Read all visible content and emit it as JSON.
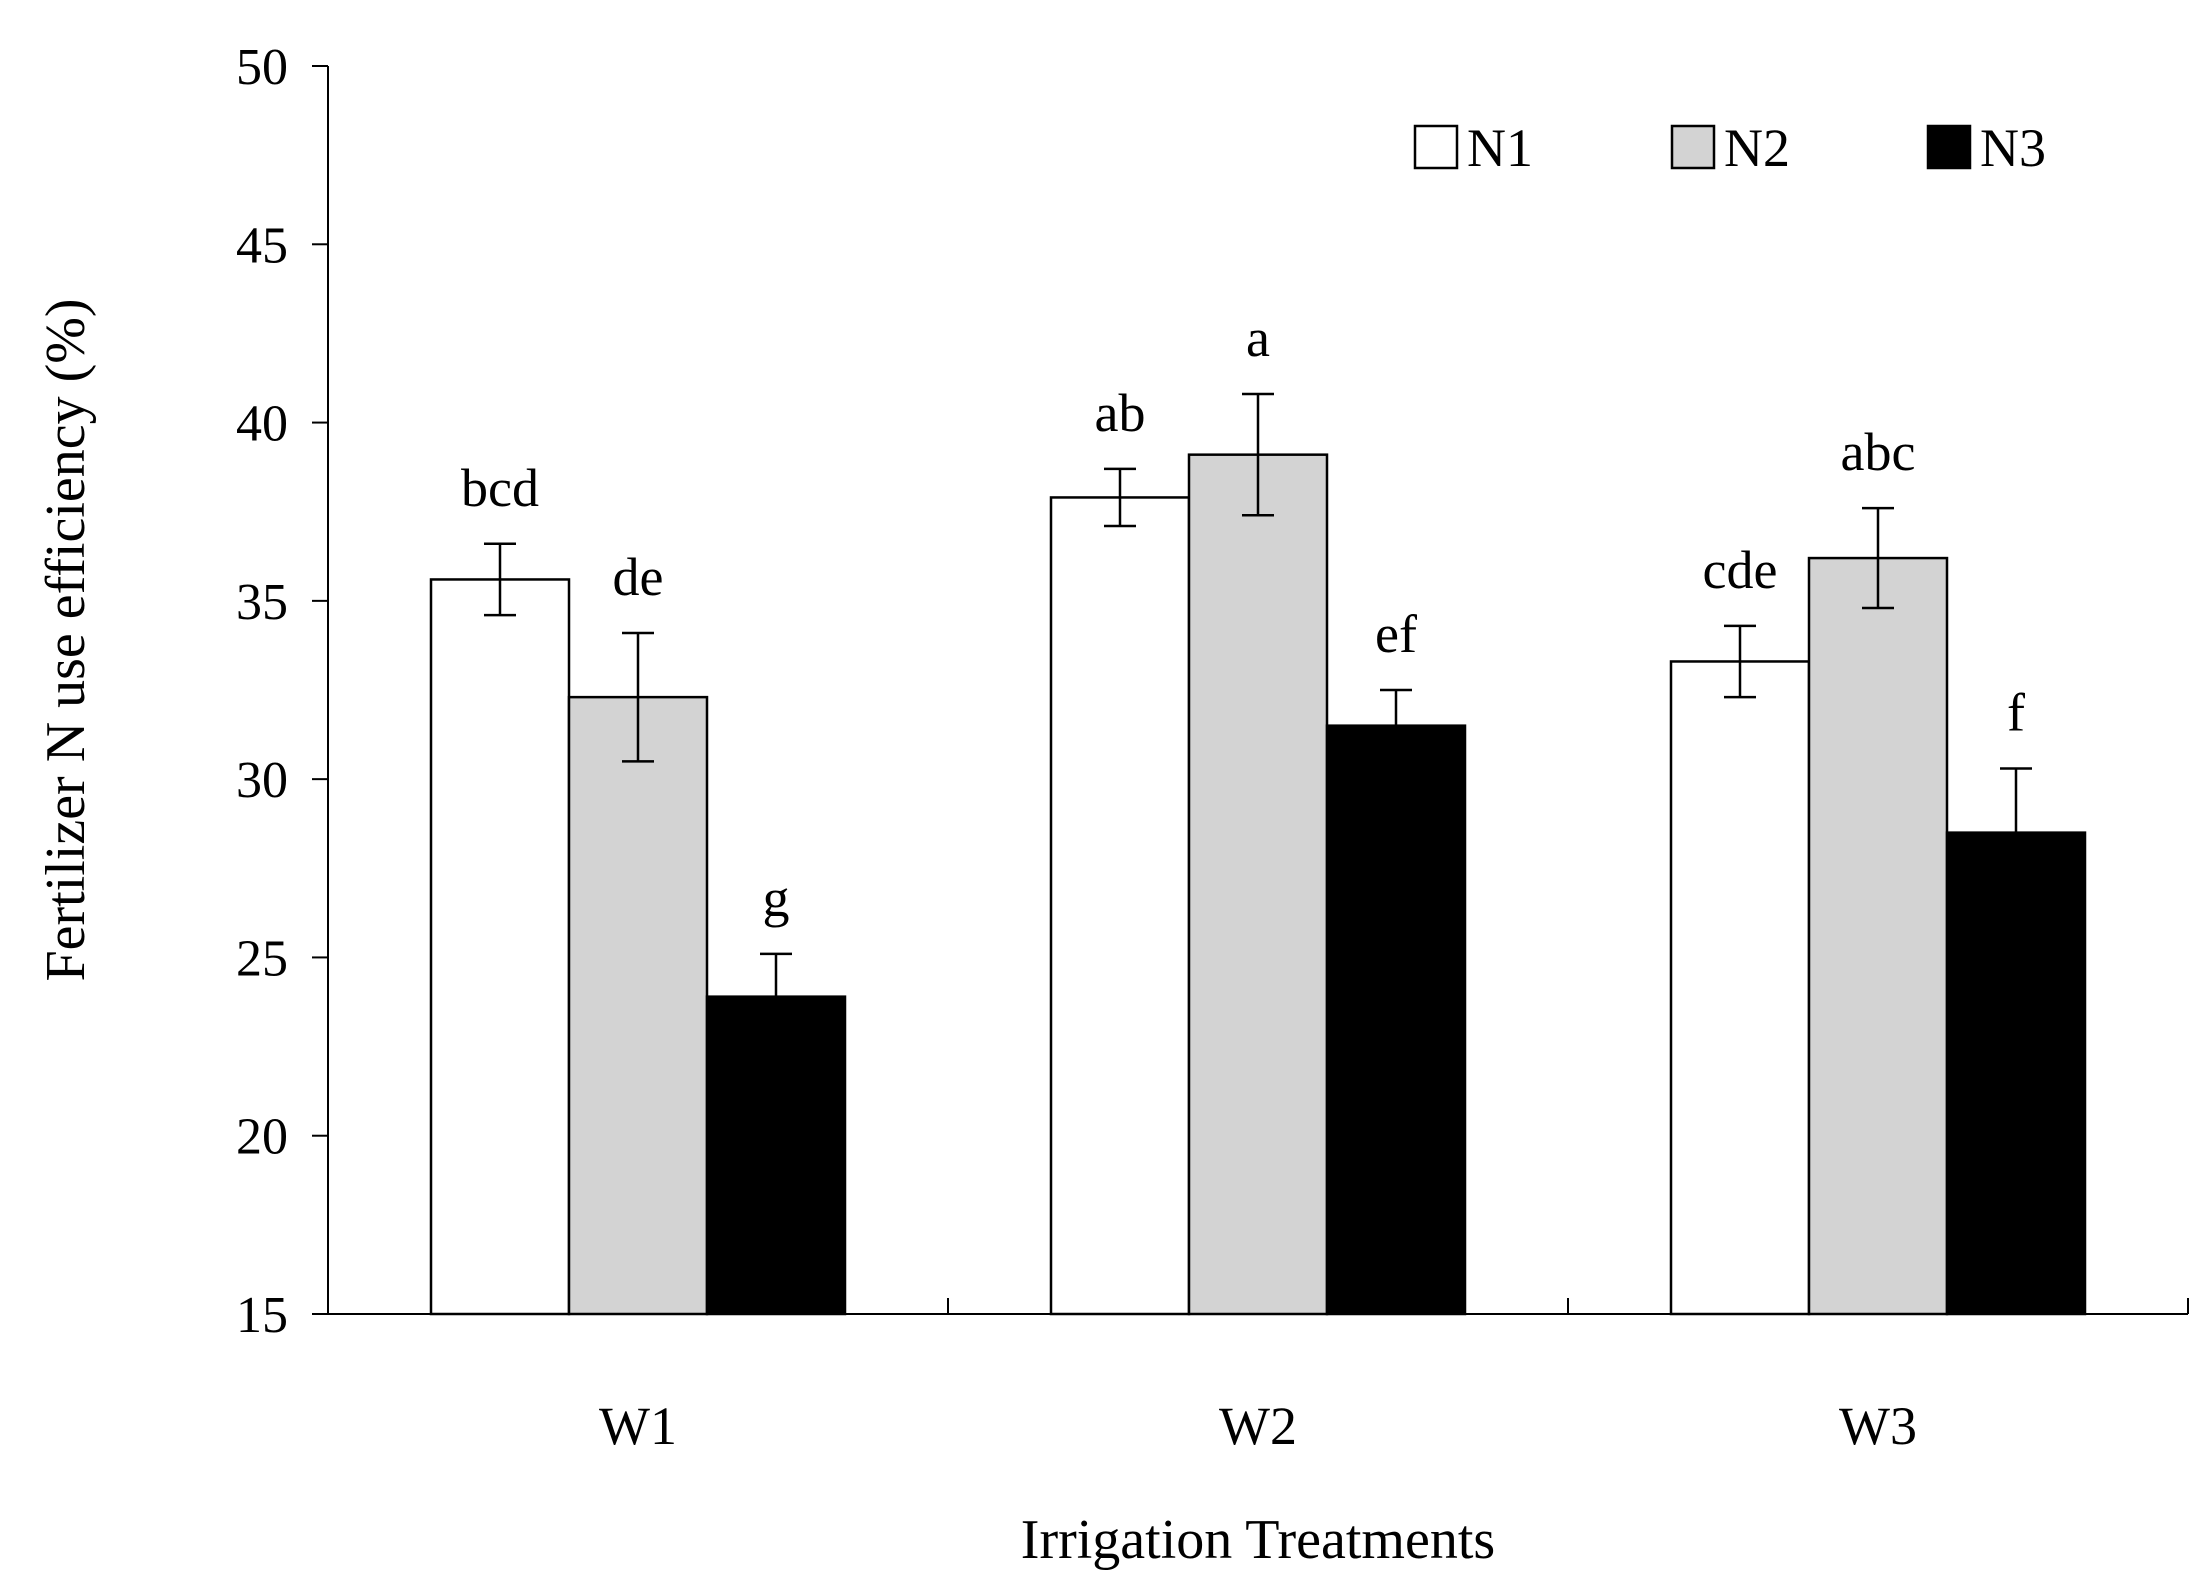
{
  "chart_data": {
    "type": "bar",
    "title": "",
    "xlabel": "Irrigation Treatments",
    "ylabel": "Fertilizer N use efficiency (%)",
    "ylim": [
      15,
      50
    ],
    "yticks": [
      15,
      20,
      25,
      30,
      35,
      40,
      45,
      50
    ],
    "categories": [
      "W1",
      "W2",
      "W3"
    ],
    "legend_position": "top-right",
    "series": [
      {
        "name": "N1",
        "color": "#ffffff",
        "values": [
          35.6,
          37.9,
          33.3
        ],
        "errors": [
          1.0,
          0.8,
          1.0
        ],
        "letters": [
          "bcd",
          "ab",
          "cde"
        ]
      },
      {
        "name": "N2",
        "color": "#d3d3d3",
        "values": [
          32.3,
          39.1,
          36.2
        ],
        "errors": [
          1.8,
          1.7,
          1.4
        ],
        "letters": [
          "de",
          "a",
          "abc"
        ]
      },
      {
        "name": "N3",
        "color": "#000000",
        "values": [
          23.9,
          31.5,
          28.5
        ],
        "errors": [
          1.2,
          1.0,
          1.8
        ],
        "letters": [
          "g",
          "ef",
          "f"
        ]
      }
    ]
  }
}
